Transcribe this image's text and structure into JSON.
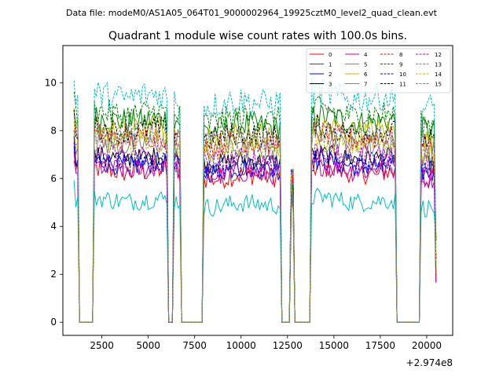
{
  "suptitle": "Data file: modeM0/AS1A05_064T01_9000002964_19925cztM0_level2_quad_clean.evt",
  "chart_data": {
    "type": "line",
    "title": "Quadrant 1 module wise count rates with 100.0s bins.",
    "xlabel": "",
    "ylabel": "",
    "x_offset_label": "+2.974e8",
    "xlim": [
      400,
      21400
    ],
    "ylim": [
      -0.55,
      11.55
    ],
    "xticks": [
      2500,
      5000,
      7500,
      10000,
      12500,
      15000,
      17500,
      20000
    ],
    "xtick_labels": [
      "2500",
      "5000",
      "7500",
      "10000",
      "12500",
      "15000",
      "17500",
      "20000"
    ],
    "yticks": [
      0,
      2,
      4,
      6,
      8,
      10
    ],
    "ytick_labels": [
      "0",
      "2",
      "4",
      "6",
      "8",
      "10"
    ],
    "grid": false,
    "legend_position": "top-right",
    "segments": [
      [
        1000,
        1200
      ],
      [
        2100,
        6000
      ],
      [
        6350,
        6750
      ],
      [
        7950,
        12100
      ],
      [
        12650,
        12850
      ],
      [
        13750,
        18300
      ],
      [
        19650,
        20550
      ]
    ],
    "series": [
      {
        "name": "0",
        "color": "#ff0000",
        "dash": false,
        "level": 6.2,
        "amp": 0.45
      },
      {
        "name": "1",
        "color": "#008000",
        "dash": false,
        "level": 8.3,
        "amp": 0.55
      },
      {
        "name": "2",
        "color": "#0000ff",
        "dash": false,
        "level": 6.5,
        "amp": 0.45
      },
      {
        "name": "3",
        "color": "#000000",
        "dash": false,
        "level": 6.8,
        "amp": 0.4
      },
      {
        "name": "4",
        "color": "#bf00bf",
        "dash": false,
        "level": 6.3,
        "amp": 0.45
      },
      {
        "name": "5",
        "color": "#00bfbf",
        "dash": false,
        "level": 5.0,
        "amp": 0.4
      },
      {
        "name": "6",
        "color": "#bfbf00",
        "dash": false,
        "level": 7.9,
        "amp": 0.55
      },
      {
        "name": "7",
        "color": "#808080",
        "dash": false,
        "level": 7.3,
        "amp": 0.5
      },
      {
        "name": "8",
        "color": "#ff0000",
        "dash": true,
        "level": 7.6,
        "amp": 0.5
      },
      {
        "name": "9",
        "color": "#008000",
        "dash": true,
        "level": 8.6,
        "amp": 0.55
      },
      {
        "name": "10",
        "color": "#0000ff",
        "dash": true,
        "level": 6.6,
        "amp": 0.45
      },
      {
        "name": "11",
        "color": "#000000",
        "dash": true,
        "level": 7.9,
        "amp": 0.5
      },
      {
        "name": "12",
        "color": "#bf00bf",
        "dash": true,
        "level": 6.9,
        "amp": 0.45
      },
      {
        "name": "13",
        "color": "#00bfbf",
        "dash": true,
        "level": 9.3,
        "amp": 0.6
      },
      {
        "name": "14",
        "color": "#bfbf00",
        "dash": true,
        "level": 7.4,
        "amp": 0.5
      },
      {
        "name": "15",
        "color": "#808080",
        "dash": true,
        "level": 7.7,
        "amp": 0.5
      }
    ]
  }
}
